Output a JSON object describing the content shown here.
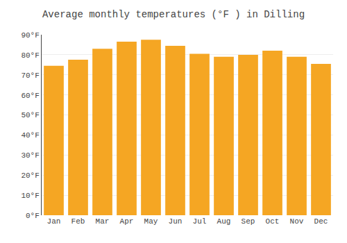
{
  "chart_data": {
    "type": "bar",
    "title": "Average monthly temperatures (°F ) in Dilling",
    "categories": [
      "Jan",
      "Feb",
      "Mar",
      "Apr",
      "May",
      "Jun",
      "Jul",
      "Aug",
      "Sep",
      "Oct",
      "Nov",
      "Dec"
    ],
    "values": [
      74.5,
      77.5,
      83.0,
      86.5,
      87.5,
      84.5,
      80.5,
      79.0,
      80.0,
      82.0,
      79.0,
      75.5
    ],
    "color": "#F5A623",
    "ylim": [
      0,
      90
    ],
    "yticks": [
      {
        "value": 0,
        "label": "0°F"
      },
      {
        "value": 10,
        "label": "10°F"
      },
      {
        "value": 20,
        "label": "20°F"
      },
      {
        "value": 30,
        "label": "30°F"
      },
      {
        "value": 40,
        "label": "40°F"
      },
      {
        "value": 50,
        "label": "50°F"
      },
      {
        "value": 60,
        "label": "60°F"
      },
      {
        "value": 70,
        "label": "70°F"
      },
      {
        "value": 80,
        "label": "80°F"
      },
      {
        "value": 90,
        "label": "90°F"
      }
    ],
    "grid": true
  }
}
